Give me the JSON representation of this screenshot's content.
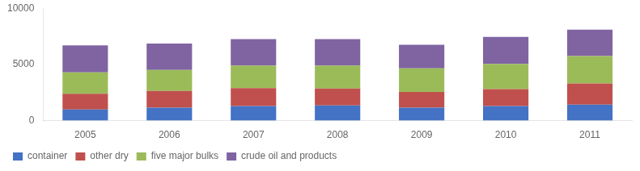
{
  "chart_data": {
    "type": "bar",
    "stacked": true,
    "categories": [
      "2005",
      "2006",
      "2007",
      "2008",
      "2009",
      "2010",
      "2011"
    ],
    "series": [
      {
        "name": "container",
        "color": "#4472C4",
        "values": [
          1000,
          1150,
          1300,
          1350,
          1150,
          1300,
          1430
        ]
      },
      {
        "name": "other dry",
        "color": "#C0504D",
        "values": [
          1400,
          1500,
          1600,
          1500,
          1400,
          1500,
          1870
        ]
      },
      {
        "name": "five major bulks",
        "color": "#9BBB59",
        "values": [
          1900,
          1850,
          2000,
          2050,
          2100,
          2250,
          2450
        ]
      },
      {
        "name": "crude oil and products",
        "color": "#8064A2",
        "values": [
          2400,
          2350,
          2350,
          2350,
          2100,
          2400,
          2350
        ]
      }
    ],
    "ylim": [
      0,
      10000
    ],
    "yticks": [
      0,
      5000,
      10000
    ],
    "grid": false,
    "legend": "bottom"
  }
}
